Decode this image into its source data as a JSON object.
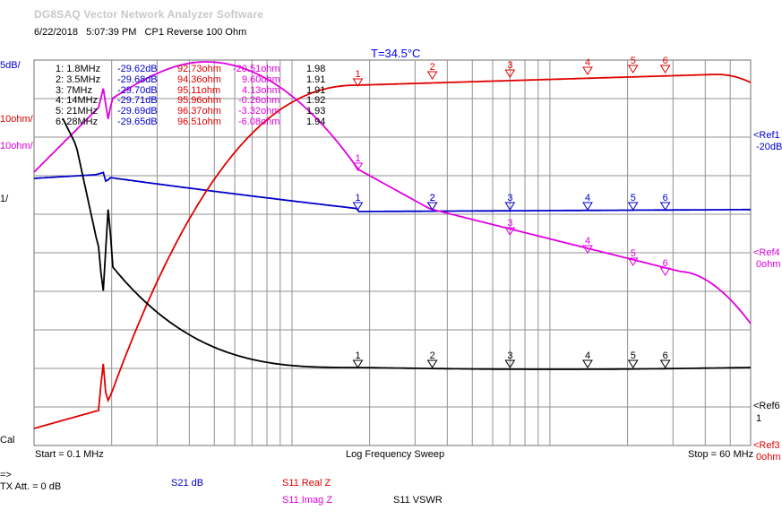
{
  "app": {
    "title": "DG8SAQ Vector Network Analyzer Software",
    "date": "6/22/2018",
    "time": "5:07:39 PM",
    "description": "CP1 Reverse 100 Ohm",
    "temperature": "T=34.5°C"
  },
  "scale_labels": {
    "blue_scale": "5dB/",
    "red_scale": "10ohm/",
    "magenta_scale": "10ohm/",
    "black_scale": "1/",
    "cal": "Cal",
    "ref1": "<Ref1",
    "ref1_value": "-20dB",
    "ref4": "<Ref4",
    "ref4_value": "0ohm",
    "ref6": "<Ref6",
    "ref6_value": "1",
    "ref3": "<Ref3",
    "ref3_value": "0ohm"
  },
  "axis": {
    "start": "Start = 0.1 MHz",
    "sweep": "Log Frequency Sweep",
    "stop": "Stop = 60 MHz"
  },
  "markers": [
    {
      "id": "1",
      "freq": "1: 1.8MHz",
      "s21": "-29.62dB",
      "realz": "92.73ohm",
      "imagz": "-20.51ohm",
      "vswr": "1.98"
    },
    {
      "id": "2",
      "freq": "2: 3.5MHz",
      "s21": "-29.68dB",
      "realz": "94.36ohm",
      "imagz": "9.60ohm",
      "vswr": "1.91"
    },
    {
      "id": "3",
      "freq": "3: 7MHz",
      "s21": "-29.70dB",
      "realz": "95.11ohm",
      "imagz": "4.13ohm",
      "vswr": "1.91"
    },
    {
      "id": "4",
      "freq": "4: 14MHz",
      "s21": "-29.71dB",
      "realz": "95.96ohm",
      "imagz": "-0.26ohm",
      "vswr": "1.92"
    },
    {
      "id": "5",
      "freq": "5: 21MHz",
      "s21": "-29.69dB",
      "realz": "96.37ohm",
      "imagz": "-3.32ohm",
      "vswr": "1.93"
    },
    {
      "id": "6",
      "freq": "6: 28MHz",
      "s21": "-29.65dB",
      "realz": "96.51ohm",
      "imagz": "-6.08ohm",
      "vswr": "1.94"
    }
  ],
  "legend": {
    "arrow": "=>",
    "tx_att": "TX Att.  = 0 dB",
    "s21": "S21  dB",
    "s11_real": "S11  Real Z",
    "s11_imag": "S11  Imag Z",
    "s11_vswr": "S11  VSWR"
  },
  "colors": {
    "s21": "#0000cc",
    "real": "#e00000",
    "imag": "#e000e0",
    "vswr": "#000000",
    "grid": "#808080"
  }
}
